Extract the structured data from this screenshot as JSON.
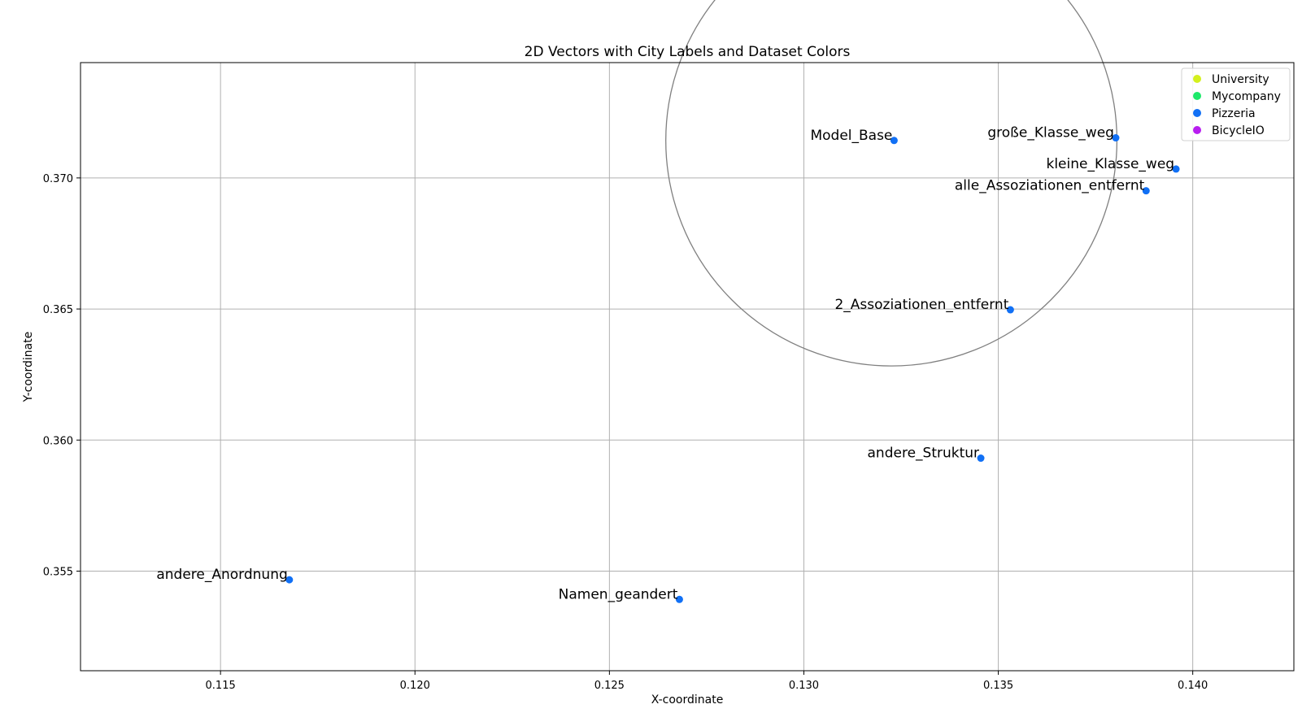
{
  "chart_data": {
    "type": "scatter",
    "title": "2D Vectors with City Labels and Dataset Colors",
    "xlabel": "X-coordinate",
    "ylabel": "Y-coordinate",
    "xlim": [
      0.1114,
      0.1426
    ],
    "ylim": [
      0.3512,
      0.3744
    ],
    "xticks": [
      0.115,
      0.12,
      0.125,
      0.13,
      0.135,
      0.14
    ],
    "xtick_labels": [
      "0.115",
      "0.120",
      "0.125",
      "0.130",
      "0.135",
      "0.140"
    ],
    "yticks": [
      0.355,
      0.36,
      0.365,
      0.37
    ],
    "ytick_labels": [
      "0.355",
      "0.360",
      "0.365",
      "0.370"
    ],
    "grid": true,
    "legend_position": "top-right",
    "legend": [
      {
        "label": "University",
        "color": "#d4f01e"
      },
      {
        "label": "Mycompany",
        "color": "#1ee86a"
      },
      {
        "label": "Pizzeria",
        "color": "#1170f5"
      },
      {
        "label": "BicycleIO",
        "color": "#b81ef0"
      }
    ],
    "points": [
      {
        "label": "Model_Base",
        "x": 0.13232,
        "y": 0.37143,
        "series": "Pizzeria"
      },
      {
        "label": "große_Klasse_weg",
        "x": 0.13802,
        "y": 0.37153,
        "series": "Pizzeria"
      },
      {
        "label": "kleine_Klasse_weg",
        "x": 0.13957,
        "y": 0.37034,
        "series": "Pizzeria"
      },
      {
        "label": "alle_Assoziationen_entfernt",
        "x": 0.1388,
        "y": 0.36951,
        "series": "Pizzeria"
      },
      {
        "label": "2_Assoziationen_entfernt",
        "x": 0.13531,
        "y": 0.36497,
        "series": "Pizzeria"
      },
      {
        "label": "andere_Struktur",
        "x": 0.13455,
        "y": 0.35931,
        "series": "Pizzeria"
      },
      {
        "label": "andere_Anordnung",
        "x": 0.11677,
        "y": 0.35467,
        "series": "Pizzeria"
      },
      {
        "label": "Namen_geandert",
        "x": 0.1268,
        "y": 0.35392,
        "series": "Pizzeria"
      }
    ],
    "circle": {
      "cx": 0.13225,
      "cy": 0.37143,
      "r": 0.0058,
      "color": "#808080"
    }
  }
}
